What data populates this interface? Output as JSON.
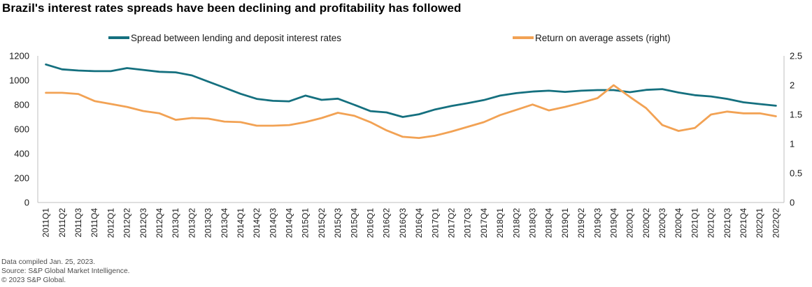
{
  "title": "Brazil's interest rates spreads have been declining and profitability has followed",
  "legend": [
    {
      "label": "Spread between lending and deposit interest rates",
      "color": "#15707f"
    },
    {
      "label": "Return on average assets (right)",
      "color": "#f2a254"
    }
  ],
  "footer": {
    "line1": "Data compiled Jan. 25, 2023.",
    "line2": "Source: S&P Global Market Intelligence.",
    "line3": "© 2023 S&P Global."
  },
  "colors": {
    "spread_line": "#15707f",
    "roaa_line": "#f2a254",
    "axis_line": "#bfbfbf",
    "text": "#1a1a1a"
  },
  "chart_data": {
    "type": "line",
    "title": "Brazil's interest rates spreads have been declining and profitability has followed",
    "grid": false,
    "legend_position": "top",
    "x": [
      "2011Q1",
      "2011Q2",
      "2011Q3",
      "2011Q4",
      "2012Q1",
      "2012Q2",
      "2012Q3",
      "2012Q4",
      "2013Q1",
      "2013Q2",
      "2013Q3",
      "2013Q4",
      "2014Q1",
      "2014Q2",
      "2014Q3",
      "2014Q4",
      "2015Q1",
      "2015Q2",
      "2015Q3",
      "2015Q4",
      "2016Q1",
      "2016Q2",
      "2016Q3",
      "2016Q4",
      "2017Q1",
      "2017Q2",
      "2017Q3",
      "2017Q4",
      "2018Q1",
      "2018Q2",
      "2018Q3",
      "2018Q4",
      "2019Q1",
      "2019Q2",
      "2019Q3",
      "2019Q4",
      "2020Q1",
      "2020Q2",
      "2020Q3",
      "2020Q4",
      "2021Q1",
      "2021Q2",
      "2021Q3",
      "2021Q4",
      "2022Q1",
      "2022Q2"
    ],
    "series": [
      {
        "name": "Spread between lending and deposit interest rates",
        "axis": "left",
        "color": "#15707f",
        "values": [
          1130,
          1090,
          1080,
          1075,
          1075,
          1100,
          1085,
          1070,
          1065,
          1040,
          990,
          940,
          890,
          848,
          832,
          828,
          875,
          840,
          850,
          800,
          748,
          737,
          700,
          722,
          762,
          790,
          813,
          838,
          875,
          895,
          908,
          915,
          905,
          915,
          920,
          920,
          903,
          922,
          928,
          900,
          878,
          868,
          848,
          820,
          806,
          792
        ]
      },
      {
        "name": "Return on average assets (right)",
        "axis": "right",
        "color": "#f2a254",
        "values": [
          1.87,
          1.87,
          1.85,
          1.73,
          1.68,
          1.63,
          1.56,
          1.52,
          1.41,
          1.44,
          1.43,
          1.38,
          1.37,
          1.31,
          1.31,
          1.32,
          1.37,
          1.44,
          1.53,
          1.48,
          1.37,
          1.23,
          1.12,
          1.1,
          1.14,
          1.21,
          1.29,
          1.37,
          1.49,
          1.58,
          1.67,
          1.57,
          1.63,
          1.7,
          1.78,
          2.0,
          1.8,
          1.61,
          1.32,
          1.22,
          1.27,
          1.5,
          1.55,
          1.52,
          1.52,
          1.47
        ]
      }
    ],
    "left_axis": {
      "min": 0,
      "max": 1200,
      "step": 200,
      "ticks": [
        "0",
        "200",
        "400",
        "600",
        "800",
        "1000",
        "1200"
      ]
    },
    "right_axis": {
      "min": 0,
      "max": 2.5,
      "step": 0.5,
      "ticks": [
        "0",
        "0.5",
        "1",
        "1.5",
        "2",
        "2.5"
      ]
    }
  }
}
